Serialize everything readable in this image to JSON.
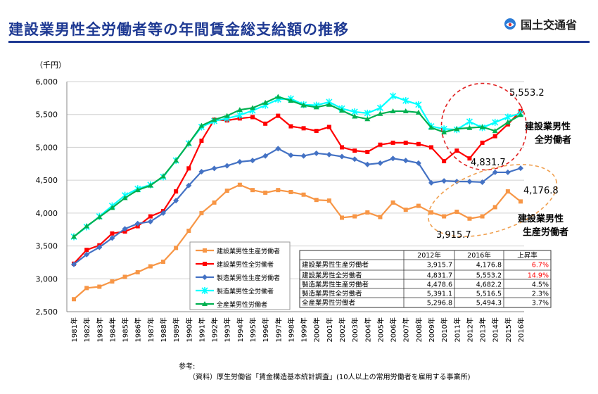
{
  "header": {
    "title": "建設業男性全労働者等の年間賃金総支給額の推移",
    "logo_text": "国土交通省"
  },
  "reference": {
    "label": "参考:",
    "source": "（資料）厚生労働省「賃金構造基本統計調査」(10人以上の常用労働者を雇用する事業所)"
  },
  "chart_data": {
    "type": "line",
    "unit_label": "（千円）",
    "ylim": [
      2500,
      6000
    ],
    "yticks": [
      "2,500",
      "3,000",
      "3,500",
      "4,000",
      "4,500",
      "5,000",
      "5,500",
      "6,000"
    ],
    "x": [
      "1981年",
      "1982年",
      "1983年",
      "1984年",
      "1985年",
      "1986年",
      "1987年",
      "1988年",
      "1989年",
      "1990年",
      "1991年",
      "1992年",
      "1993年",
      "1994年",
      "1995年",
      "1996年",
      "1997年",
      "1998年",
      "1999年",
      "2000年",
      "2001年",
      "2002年",
      "2003年",
      "2004年",
      "2005年",
      "2006年",
      "2007年",
      "2008年",
      "2009年",
      "2010年",
      "2011年",
      "2012年",
      "2013年",
      "2014年",
      "2015年",
      "2016年"
    ],
    "grid": true,
    "legend_position": "bottom-left",
    "series": [
      {
        "name": "建設業男性生産労働者",
        "color": "#f79646",
        "marker": "square",
        "values": [
          2690,
          2860,
          2880,
          2960,
          3030,
          3100,
          3190,
          3260,
          3470,
          3730,
          4000,
          4160,
          4340,
          4430,
          4350,
          4310,
          4350,
          4320,
          4280,
          4200,
          4190,
          3930,
          3950,
          4010,
          3940,
          4160,
          4050,
          4110,
          4010,
          3950,
          4020,
          3915.7,
          3950,
          4090,
          4330,
          4176.8
        ]
      },
      {
        "name": "建設業男性全労働者",
        "color": "#ff0000",
        "marker": "square",
        "values": [
          3230,
          3440,
          3510,
          3690,
          3720,
          3800,
          3950,
          4030,
          4330,
          4680,
          5100,
          5420,
          5410,
          5440,
          5460,
          5360,
          5480,
          5320,
          5290,
          5250,
          5310,
          5000,
          4950,
          4930,
          5040,
          5070,
          5070,
          5050,
          5000,
          4790,
          4950,
          4831.7,
          5070,
          5170,
          5350,
          5553.2
        ]
      },
      {
        "name": "製造業男性生産労働者",
        "color": "#4472c4",
        "marker": "diamond",
        "values": [
          3220,
          3370,
          3480,
          3620,
          3760,
          3840,
          3870,
          4000,
          4190,
          4420,
          4630,
          4680,
          4720,
          4780,
          4800,
          4870,
          4980,
          4880,
          4870,
          4910,
          4890,
          4860,
          4820,
          4740,
          4760,
          4830,
          4800,
          4760,
          4460,
          4490,
          4480,
          4478.6,
          4470,
          4620,
          4620,
          4682.2
        ]
      },
      {
        "name": "製造業男性全労働者",
        "color": "#00ffff",
        "marker": "star",
        "values": [
          3640,
          3790,
          3950,
          4110,
          4270,
          4370,
          4430,
          4550,
          4800,
          5060,
          5310,
          5400,
          5440,
          5490,
          5560,
          5640,
          5730,
          5740,
          5650,
          5640,
          5690,
          5590,
          5540,
          5520,
          5600,
          5780,
          5710,
          5650,
          5320,
          5280,
          5270,
          5391.1,
          5300,
          5380,
          5460,
          5516.5
        ]
      },
      {
        "name": "全産業男性労働者",
        "color": "#00b050",
        "marker": "triangle",
        "values": [
          3640,
          3800,
          3940,
          4080,
          4230,
          4350,
          4420,
          4560,
          4800,
          5060,
          5330,
          5420,
          5480,
          5570,
          5600,
          5680,
          5770,
          5710,
          5640,
          5610,
          5650,
          5560,
          5470,
          5430,
          5510,
          5550,
          5550,
          5530,
          5300,
          5230,
          5280,
          5296.8,
          5310,
          5250,
          5380,
          5494.3
        ]
      }
    ],
    "annotations": {
      "label_all_value": "5,553.2",
      "label_all_2012": "4,831.7",
      "label_prod_value": "4,176.8",
      "label_prod_2012": "3,915.7",
      "group_all": [
        "建設業男性",
        "全労働者"
      ],
      "group_prod": [
        "建設業男性",
        "生産労働者"
      ]
    },
    "table": {
      "headers": [
        "",
        "2012年",
        "2016年",
        "上昇率"
      ],
      "rows": [
        [
          "建設業男性生産労働者",
          "3,915.7",
          "4,176.8",
          "6.7%"
        ],
        [
          "建設業男性全労働者",
          "4,831.7",
          "5,553.2",
          "14.9%"
        ],
        [
          "製造業男性生産労働者",
          "4,478.6",
          "4,682.2",
          "4.5%"
        ],
        [
          "製造業男性全労働者",
          "5,391.1",
          "5,516.5",
          "2.3%"
        ],
        [
          "全産業男性労働者",
          "5,296.8",
          "5,494.3",
          "3.7%"
        ]
      ],
      "highlight_color": "#ff0000",
      "highlight_rows": [
        0,
        1
      ]
    }
  }
}
